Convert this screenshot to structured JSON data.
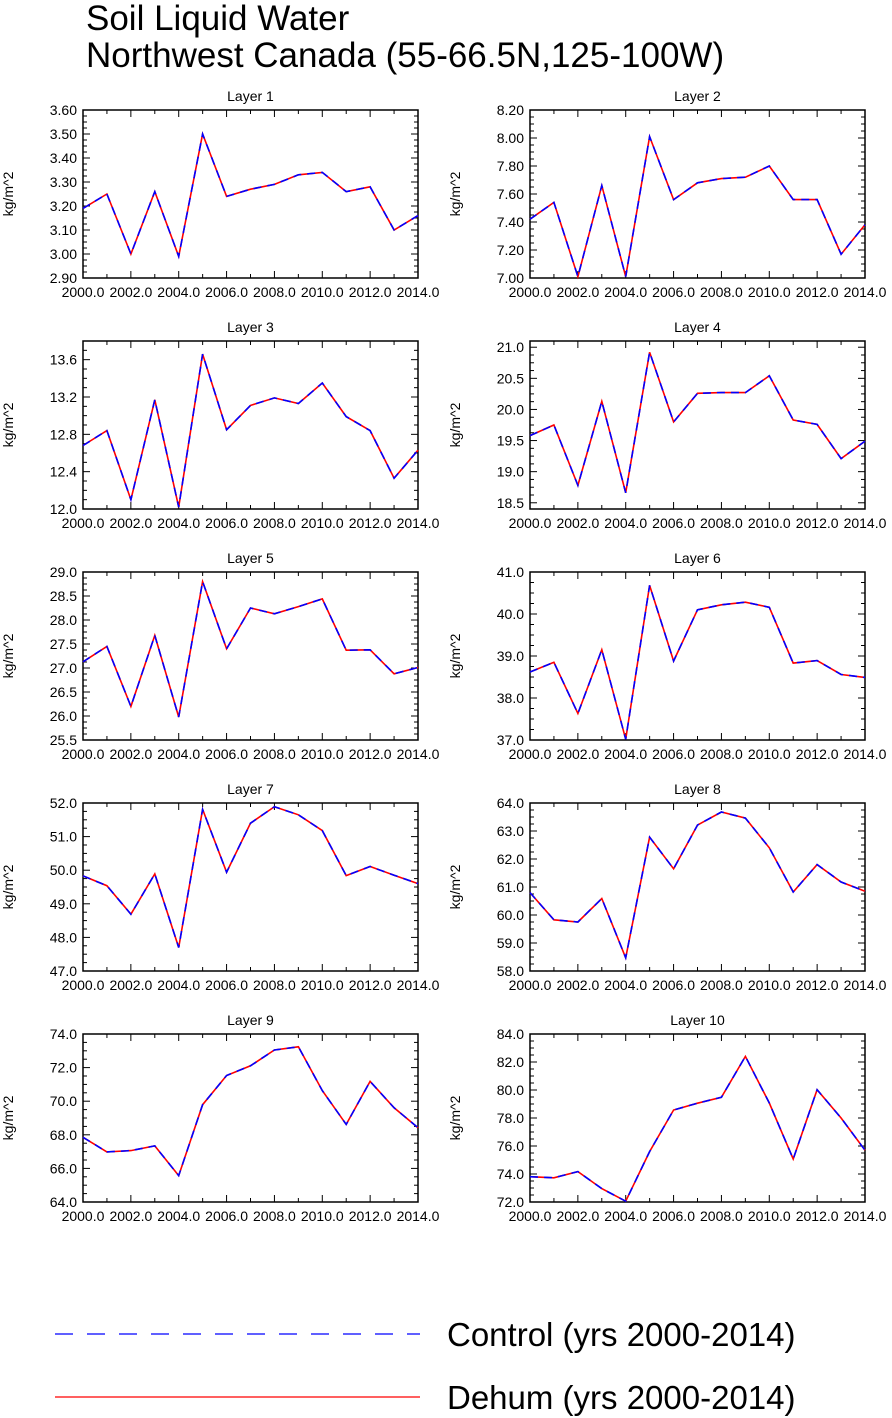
{
  "title_lines": [
    "Soil Liquid Water",
    "Northwest Canada (55-66.5N,125-100W)"
  ],
  "legend": [
    {
      "label": "Control (yrs 2000-2014)",
      "color": "#0000ff",
      "dash": true
    },
    {
      "label": "Dehum (yrs 2000-2014)",
      "color": "#ff0000",
      "dash": false
    }
  ],
  "chart_data": [
    {
      "type": "line",
      "title": "Layer 1",
      "ylabel": "kg/m^2",
      "xlim": [
        2000,
        2014
      ],
      "ylim": [
        2.9,
        3.6
      ],
      "xticks": [
        "2000.0",
        "2002.0",
        "2004.0",
        "2006.0",
        "2008.0",
        "2010.0",
        "2012.0",
        "2014.0"
      ],
      "yticks": [
        "2.90",
        "3.00",
        "3.10",
        "3.20",
        "3.30",
        "3.40",
        "3.50",
        "3.60"
      ],
      "x": [
        2000,
        2001,
        2002,
        2003,
        2004,
        2005,
        2006,
        2007,
        2008,
        2009,
        2010,
        2011,
        2012,
        2013,
        2014
      ],
      "series": [
        {
          "name": "Control (yrs 2000-2014)",
          "values": [
            3.19,
            3.25,
            3.0,
            3.26,
            2.99,
            3.5,
            3.24,
            3.27,
            3.29,
            3.33,
            3.34,
            3.26,
            3.28,
            3.1,
            3.16
          ]
        },
        {
          "name": "Dehum (yrs 2000-2014)",
          "values": [
            3.19,
            3.25,
            3.0,
            3.26,
            2.99,
            3.5,
            3.24,
            3.27,
            3.29,
            3.33,
            3.34,
            3.26,
            3.28,
            3.1,
            3.16
          ]
        }
      ]
    },
    {
      "type": "line",
      "title": "Layer 2",
      "ylabel": "kg/m^2",
      "xlim": [
        2000,
        2014
      ],
      "ylim": [
        7.0,
        8.2
      ],
      "xticks": [
        "2000.0",
        "2002.0",
        "2004.0",
        "2006.0",
        "2008.0",
        "2010.0",
        "2012.0",
        "2014.0"
      ],
      "yticks": [
        "7.00",
        "7.20",
        "7.40",
        "7.60",
        "7.80",
        "8.00",
        "8.20"
      ],
      "x": [
        2000,
        2001,
        2002,
        2003,
        2004,
        2005,
        2006,
        2007,
        2008,
        2009,
        2010,
        2011,
        2012,
        2013,
        2014
      ],
      "series": [
        {
          "name": "Control (yrs 2000-2014)",
          "values": [
            7.42,
            7.54,
            7.01,
            7.66,
            7.01,
            8.01,
            7.56,
            7.68,
            7.71,
            7.72,
            7.8,
            7.56,
            7.56,
            7.17,
            7.38
          ]
        },
        {
          "name": "Dehum (yrs 2000-2014)",
          "values": [
            7.42,
            7.54,
            7.01,
            7.66,
            7.01,
            8.01,
            7.56,
            7.68,
            7.71,
            7.72,
            7.8,
            7.56,
            7.56,
            7.17,
            7.38
          ]
        }
      ]
    },
    {
      "type": "line",
      "title": "Layer 3",
      "ylabel": "kg/m^2",
      "xlim": [
        2000,
        2014
      ],
      "ylim": [
        12.0,
        13.8
      ],
      "xticks": [
        "2000.0",
        "2002.0",
        "2004.0",
        "2006.0",
        "2008.0",
        "2010.0",
        "2012.0",
        "2014.0"
      ],
      "yticks": [
        "12.0",
        "12.4",
        "12.8",
        "13.2",
        "13.6"
      ],
      "x": [
        2000,
        2001,
        2002,
        2003,
        2004,
        2005,
        2006,
        2007,
        2008,
        2009,
        2010,
        2011,
        2012,
        2013,
        2014
      ],
      "series": [
        {
          "name": "Control (yrs 2000-2014)",
          "values": [
            12.68,
            12.84,
            12.1,
            13.17,
            12.02,
            13.66,
            12.85,
            13.11,
            13.19,
            13.13,
            13.35,
            12.99,
            12.84,
            12.33,
            12.63
          ]
        },
        {
          "name": "Dehum (yrs 2000-2014)",
          "values": [
            12.68,
            12.84,
            12.1,
            13.17,
            12.02,
            13.66,
            12.85,
            13.11,
            13.19,
            13.13,
            13.35,
            12.99,
            12.84,
            12.33,
            12.63
          ]
        }
      ]
    },
    {
      "type": "line",
      "title": "Layer 4",
      "ylabel": "kg/m^2",
      "xlim": [
        2000,
        2014
      ],
      "ylim": [
        18.4,
        21.1
      ],
      "xticks": [
        "2000.0",
        "2002.0",
        "2004.0",
        "2006.0",
        "2008.0",
        "2010.0",
        "2012.0",
        "2014.0"
      ],
      "yticks": [
        "18.5",
        "19.0",
        "19.5",
        "20.0",
        "20.5",
        "21.0"
      ],
      "x": [
        2000,
        2001,
        2002,
        2003,
        2004,
        2005,
        2006,
        2007,
        2008,
        2009,
        2010,
        2011,
        2012,
        2013,
        2014
      ],
      "series": [
        {
          "name": "Control (yrs 2000-2014)",
          "values": [
            19.58,
            19.75,
            18.78,
            20.13,
            18.66,
            20.92,
            19.8,
            20.26,
            20.27,
            20.27,
            20.54,
            19.83,
            19.76,
            19.21,
            19.49
          ]
        },
        {
          "name": "Dehum (yrs 2000-2014)",
          "values": [
            19.58,
            19.75,
            18.78,
            20.13,
            18.66,
            20.92,
            19.8,
            20.26,
            20.27,
            20.27,
            20.54,
            19.83,
            19.76,
            19.21,
            19.49
          ]
        }
      ]
    },
    {
      "type": "line",
      "title": "Layer 5",
      "ylabel": "kg/m^2",
      "xlim": [
        2000,
        2014
      ],
      "ylim": [
        25.5,
        29.0
      ],
      "xticks": [
        "2000.0",
        "2002.0",
        "2004.0",
        "2006.0",
        "2008.0",
        "2010.0",
        "2012.0",
        "2014.0"
      ],
      "yticks": [
        "25.5",
        "26.0",
        "26.5",
        "27.0",
        "27.5",
        "28.0",
        "28.5",
        "29.0"
      ],
      "x": [
        2000,
        2001,
        2002,
        2003,
        2004,
        2005,
        2006,
        2007,
        2008,
        2009,
        2010,
        2011,
        2012,
        2013,
        2014
      ],
      "series": [
        {
          "name": "Control (yrs 2000-2014)",
          "values": [
            27.13,
            27.45,
            26.2,
            27.68,
            25.98,
            28.8,
            27.4,
            28.25,
            28.13,
            28.28,
            28.44,
            27.37,
            27.38,
            26.88,
            27.01
          ]
        },
        {
          "name": "Dehum (yrs 2000-2014)",
          "values": [
            27.13,
            27.45,
            26.2,
            27.68,
            25.98,
            28.8,
            27.4,
            28.25,
            28.13,
            28.28,
            28.44,
            27.37,
            27.38,
            26.88,
            27.01
          ]
        }
      ]
    },
    {
      "type": "line",
      "title": "Layer 6",
      "ylabel": "kg/m^2",
      "xlim": [
        2000,
        2014
      ],
      "ylim": [
        37.0,
        41.0
      ],
      "xticks": [
        "2000.0",
        "2002.0",
        "2004.0",
        "2006.0",
        "2008.0",
        "2010.0",
        "2012.0",
        "2014.0"
      ],
      "yticks": [
        "37.0",
        "38.0",
        "39.0",
        "40.0",
        "41.0"
      ],
      "x": [
        2000,
        2001,
        2002,
        2003,
        2004,
        2005,
        2006,
        2007,
        2008,
        2009,
        2010,
        2011,
        2012,
        2013,
        2014
      ],
      "series": [
        {
          "name": "Control (yrs 2000-2014)",
          "values": [
            38.62,
            38.85,
            37.63,
            39.15,
            37.02,
            40.68,
            38.88,
            40.1,
            40.22,
            40.28,
            40.16,
            38.83,
            38.89,
            38.56,
            38.49
          ]
        },
        {
          "name": "Dehum (yrs 2000-2014)",
          "values": [
            38.62,
            38.85,
            37.63,
            39.15,
            37.02,
            40.68,
            38.88,
            40.1,
            40.22,
            40.28,
            40.16,
            38.83,
            38.89,
            38.56,
            38.49
          ]
        }
      ]
    },
    {
      "type": "line",
      "title": "Layer 7",
      "ylabel": "kg/m^2",
      "xlim": [
        2000,
        2014
      ],
      "ylim": [
        47.0,
        52.0
      ],
      "xticks": [
        "2000.0",
        "2002.0",
        "2004.0",
        "2006.0",
        "2008.0",
        "2010.0",
        "2012.0",
        "2014.0"
      ],
      "yticks": [
        "47.0",
        "48.0",
        "49.0",
        "50.0",
        "51.0",
        "52.0"
      ],
      "x": [
        2000,
        2001,
        2002,
        2003,
        2004,
        2005,
        2006,
        2007,
        2008,
        2009,
        2010,
        2011,
        2012,
        2013,
        2014
      ],
      "series": [
        {
          "name": "Control (yrs 2000-2014)",
          "values": [
            49.83,
            49.54,
            48.69,
            49.89,
            47.7,
            51.81,
            49.94,
            51.4,
            51.89,
            51.65,
            51.18,
            49.84,
            50.11,
            49.85,
            49.6
          ]
        },
        {
          "name": "Dehum (yrs 2000-2014)",
          "values": [
            49.83,
            49.54,
            48.69,
            49.89,
            47.7,
            51.81,
            49.94,
            51.4,
            51.89,
            51.65,
            51.18,
            49.84,
            50.11,
            49.85,
            49.6
          ]
        }
      ]
    },
    {
      "type": "line",
      "title": "Layer 8",
      "ylabel": "kg/m^2",
      "xlim": [
        2000,
        2014
      ],
      "ylim": [
        58.0,
        64.0
      ],
      "xticks": [
        "2000.0",
        "2002.0",
        "2004.0",
        "2006.0",
        "2008.0",
        "2010.0",
        "2012.0",
        "2014.0"
      ],
      "yticks": [
        "58.0",
        "59.0",
        "60.0",
        "61.0",
        "62.0",
        "63.0",
        "64.0"
      ],
      "x": [
        2000,
        2001,
        2002,
        2003,
        2004,
        2005,
        2006,
        2007,
        2008,
        2009,
        2010,
        2011,
        2012,
        2013,
        2014
      ],
      "series": [
        {
          "name": "Control (yrs 2000-2014)",
          "values": [
            60.8,
            59.83,
            59.75,
            60.59,
            58.47,
            62.78,
            61.65,
            63.21,
            63.68,
            63.46,
            62.4,
            60.82,
            61.8,
            61.18,
            60.85
          ]
        },
        {
          "name": "Dehum (yrs 2000-2014)",
          "values": [
            60.8,
            59.83,
            59.75,
            60.59,
            58.47,
            62.78,
            61.65,
            63.21,
            63.68,
            63.46,
            62.4,
            60.82,
            61.8,
            61.18,
            60.85
          ]
        }
      ]
    },
    {
      "type": "line",
      "title": "Layer 9",
      "ylabel": "kg/m^2",
      "xlim": [
        2000,
        2014
      ],
      "ylim": [
        64.0,
        74.0
      ],
      "xticks": [
        "2000.0",
        "2002.0",
        "2004.0",
        "2006.0",
        "2008.0",
        "2010.0",
        "2012.0",
        "2014.0"
      ],
      "yticks": [
        "64.0",
        "66.0",
        "68.0",
        "70.0",
        "72.0",
        "74.0"
      ],
      "x": [
        2000,
        2001,
        2002,
        2003,
        2004,
        2005,
        2006,
        2007,
        2008,
        2009,
        2010,
        2011,
        2012,
        2013,
        2014
      ],
      "series": [
        {
          "name": "Control (yrs 2000-2014)",
          "values": [
            67.85,
            66.98,
            67.06,
            67.34,
            65.57,
            69.79,
            71.53,
            72.11,
            73.05,
            73.24,
            70.63,
            68.62,
            71.18,
            69.61,
            68.42
          ]
        },
        {
          "name": "Dehum (yrs 2000-2014)",
          "values": [
            67.85,
            66.98,
            67.06,
            67.34,
            65.57,
            69.79,
            71.53,
            72.11,
            73.05,
            73.24,
            70.63,
            68.62,
            71.18,
            69.61,
            68.42
          ]
        }
      ]
    },
    {
      "type": "line",
      "title": "Layer 10",
      "ylabel": "kg/m^2",
      "xlim": [
        2000,
        2014
      ],
      "ylim": [
        72.0,
        84.0
      ],
      "xticks": [
        "2000.0",
        "2002.0",
        "2004.0",
        "2006.0",
        "2008.0",
        "2010.0",
        "2012.0",
        "2014.0"
      ],
      "yticks": [
        "72.0",
        "74.0",
        "76.0",
        "78.0",
        "80.0",
        "82.0",
        "84.0"
      ],
      "x": [
        2000,
        2001,
        2002,
        2003,
        2004,
        2005,
        2006,
        2007,
        2008,
        2009,
        2010,
        2011,
        2012,
        2013,
        2014
      ],
      "series": [
        {
          "name": "Control (yrs 2000-2014)",
          "values": [
            73.81,
            73.73,
            74.17,
            72.96,
            72.06,
            75.6,
            78.57,
            79.06,
            79.48,
            82.4,
            79.07,
            75.07,
            80.02,
            78.0,
            75.7
          ]
        },
        {
          "name": "Dehum (yrs 2000-2014)",
          "values": [
            73.81,
            73.73,
            74.17,
            72.96,
            72.06,
            75.6,
            78.57,
            79.06,
            79.48,
            82.4,
            79.07,
            75.07,
            80.02,
            78.0,
            75.7
          ]
        }
      ]
    }
  ]
}
